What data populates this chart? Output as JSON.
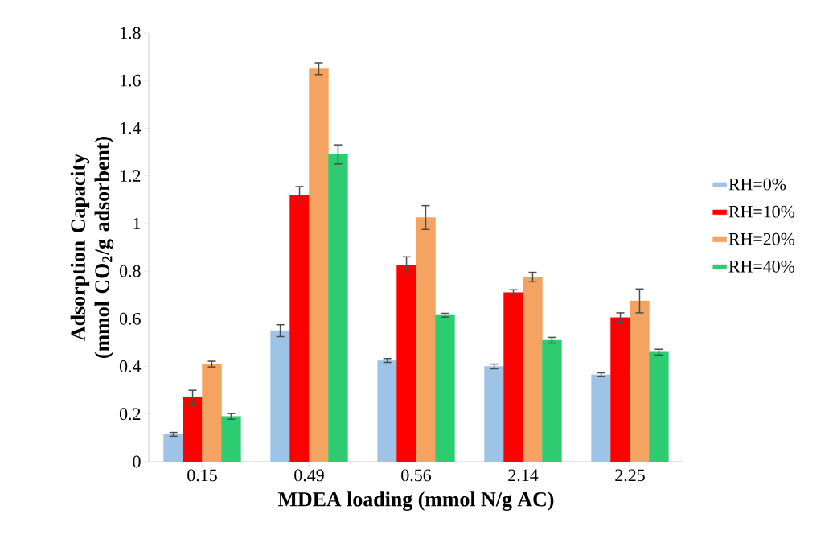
{
  "chart_data": {
    "type": "bar",
    "xlabel": "MDEA loading (mmol N/g AC)",
    "ylabel": "Adsorption Capacity (mmol CO$_{2}$/g adsorbent)",
    "categories": [
      "0.15",
      "0.49",
      "0.56",
      "2.14",
      "2.25"
    ],
    "series": [
      {
        "name": "RH=0%",
        "color": "#9dc3e6",
        "values": [
          0.115,
          0.55,
          0.425,
          0.4,
          0.365
        ],
        "errors": [
          0.008,
          0.025,
          0.008,
          0.01,
          0.008
        ]
      },
      {
        "name": "RH=10%",
        "color": "#ff0000",
        "values": [
          0.27,
          1.12,
          0.825,
          0.71,
          0.605
        ],
        "errors": [
          0.03,
          0.035,
          0.035,
          0.012,
          0.02
        ]
      },
      {
        "name": "RH=20%",
        "color": "#f4a460",
        "values": [
          0.41,
          1.65,
          1.025,
          0.775,
          0.675
        ],
        "errors": [
          0.012,
          0.025,
          0.05,
          0.02,
          0.05
        ]
      },
      {
        "name": "RH=40%",
        "color": "#2ecc71",
        "values": [
          0.19,
          1.29,
          0.615,
          0.51,
          0.46
        ],
        "errors": [
          0.012,
          0.04,
          0.008,
          0.012,
          0.012
        ]
      }
    ],
    "ylim": [
      0,
      1.8
    ],
    "yticks": [
      0,
      0.2,
      0.4,
      0.6,
      0.8,
      1,
      1.2,
      1.4,
      1.6,
      1.8
    ],
    "legend": "right"
  }
}
